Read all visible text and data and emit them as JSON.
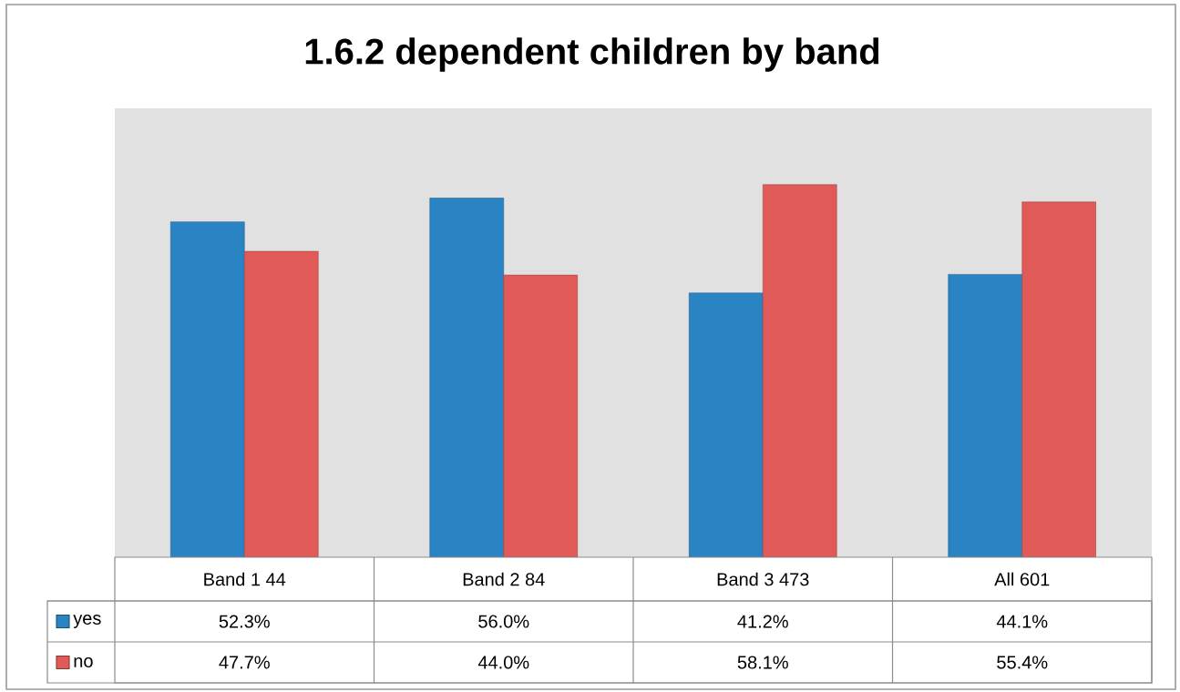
{
  "chart_data": {
    "type": "bar",
    "title": "1.6.2 dependent children by band",
    "categories": [
      "Band 1 44",
      "Band 2 84",
      "Band 3 473",
      "All 601"
    ],
    "series": [
      {
        "name": "yes",
        "color": "#2a83c3",
        "values": [
          52.3,
          56.0,
          41.2,
          44.1
        ],
        "value_labels": [
          "52.3%",
          "56.0%",
          "41.2%",
          "44.1%"
        ]
      },
      {
        "name": "no",
        "color": "#e05a57",
        "values": [
          47.7,
          44.0,
          58.1,
          55.4
        ],
        "value_labels": [
          "47.7%",
          "44.0%",
          "58.1%",
          "55.4%"
        ]
      }
    ],
    "ylim": [
      0,
      70
    ],
    "tick_labels": "x",
    "legend": "bottom left"
  }
}
